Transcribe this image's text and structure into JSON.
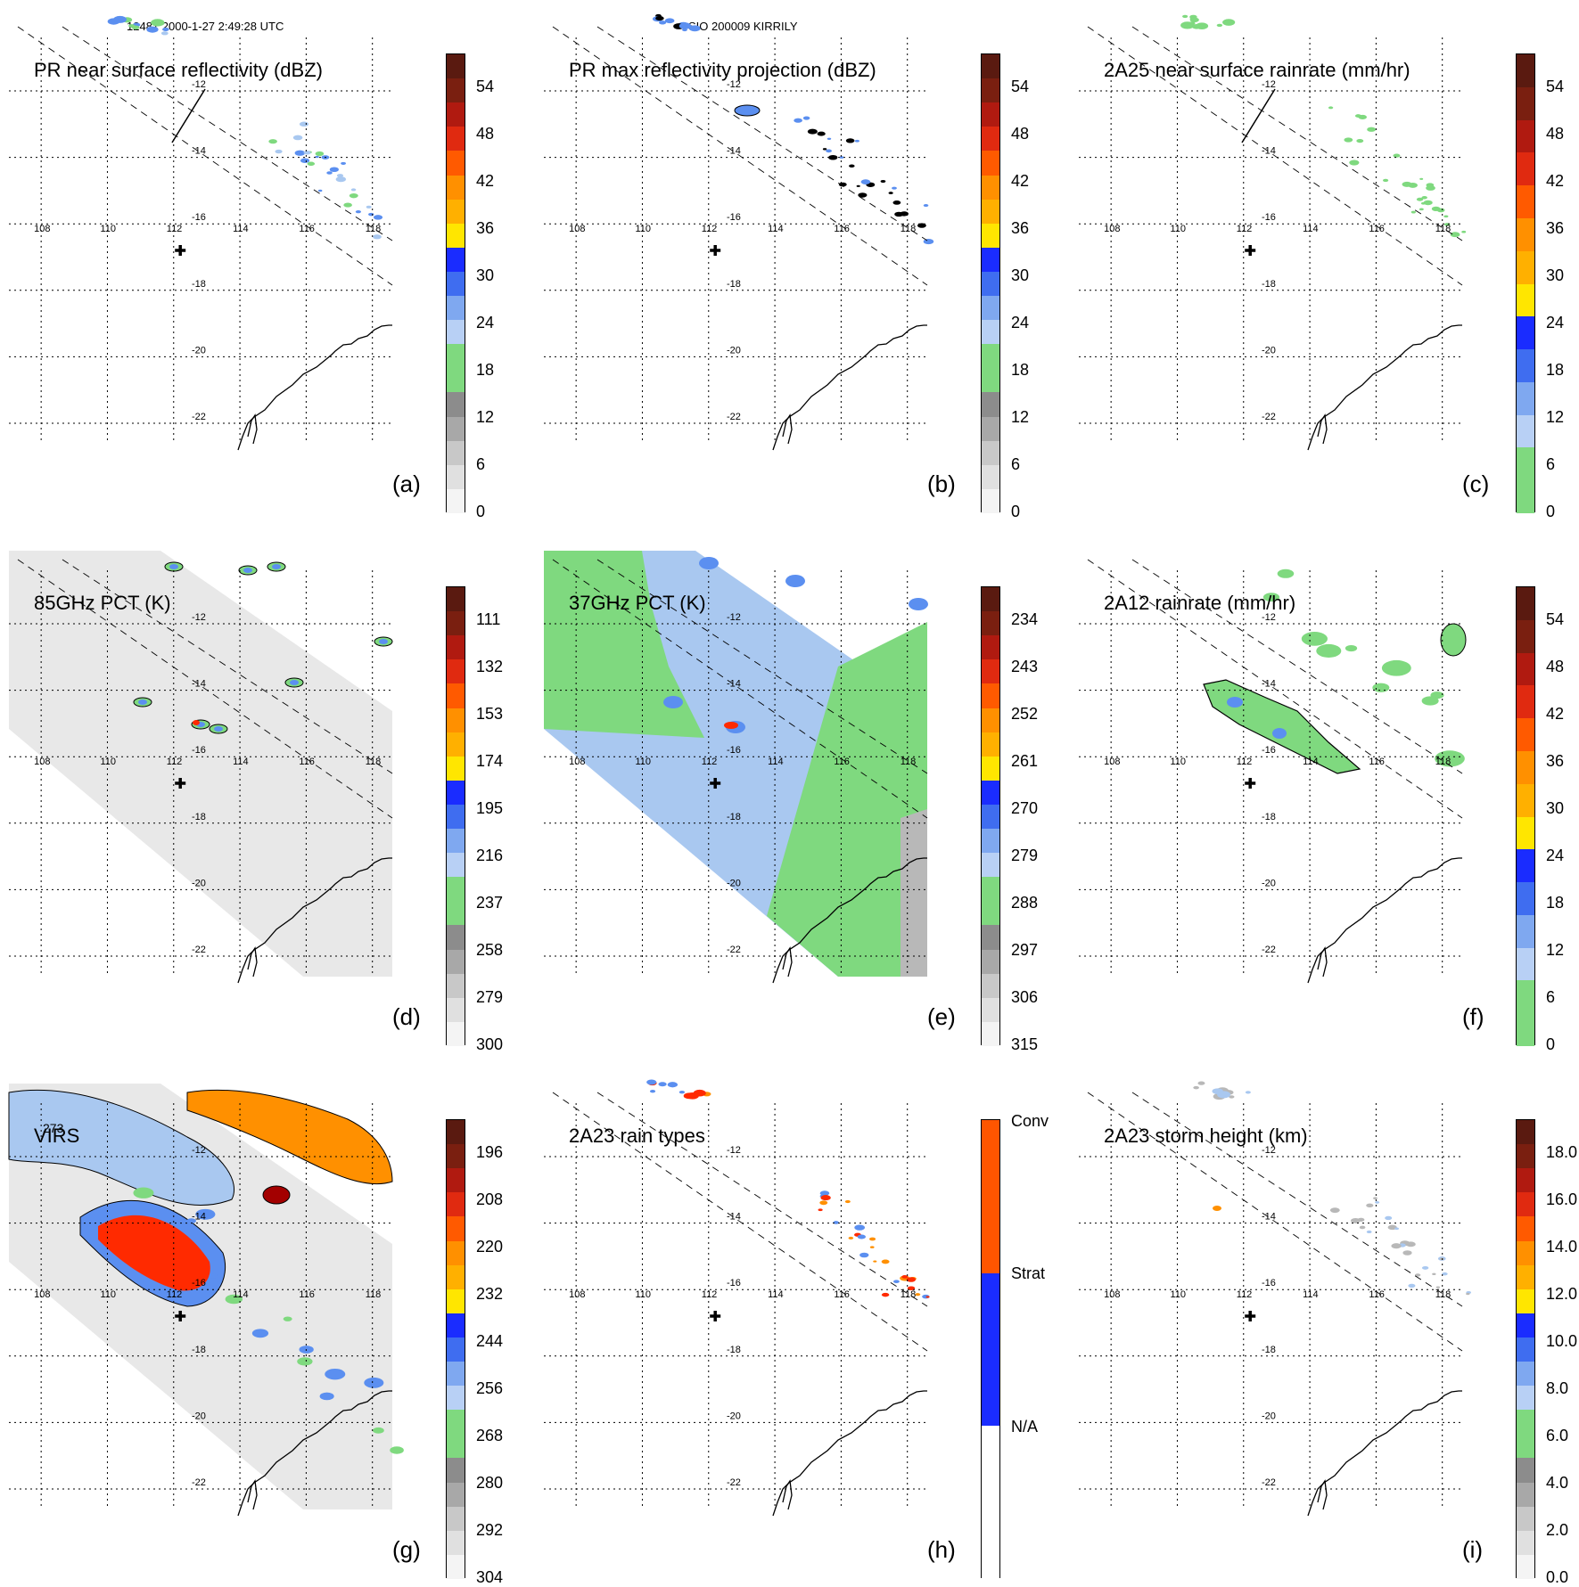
{
  "header": {
    "left": "12481 2000-1-27 2:49:28 UTC",
    "center": "SIO 200009 KIRRILY"
  },
  "map": {
    "lon_labels": [
      "108",
      "110",
      "112",
      "114",
      "116",
      "118"
    ],
    "lat_labels": [
      "-12",
      "-14",
      "-16",
      "-18",
      "-20",
      "-22"
    ],
    "storm_center": {
      "lon": 112.2,
      "lat": -16.8
    },
    "colors": {
      "gray_light": "#e8e8e8",
      "gray_mid": "#b8b8b8",
      "gray_dark": "#8c8c8c",
      "green": "#7fd97f",
      "lightblue": "#a9c8f0",
      "blue": "#5b8ff0",
      "darkblue": "#1a2cff",
      "yellow": "#ffe600",
      "orange": "#ff9000",
      "red": "#ff2a00",
      "darkred": "#a30000"
    }
  },
  "panels": [
    {
      "id": "a",
      "title": "PR near surface reflectivity (dBZ)",
      "label": "(a)",
      "colorbar": {
        "ticks": [
          "54",
          "48",
          "42",
          "36",
          "30",
          "24",
          "18",
          "12",
          "6",
          "0"
        ],
        "colors": [
          "#5a1a10",
          "#7a1f10",
          "#b01a10",
          "#e02a10",
          "#ff5a00",
          "#ff9000",
          "#ffb000",
          "#ffe600",
          "#1a2cff",
          "#3f6df0",
          "#7fa8f0",
          "#b8d0f5",
          "#7fd97f",
          "#7fd97f",
          "#8c8c8c",
          "#a8a8a8",
          "#c8c8c8",
          "#e0e0e0",
          "#f4f4f4"
        ]
      }
    },
    {
      "id": "b",
      "title": "PR max reflectivity projection (dBZ)",
      "label": "(b)",
      "colorbar": {
        "ticks": [
          "54",
          "48",
          "42",
          "36",
          "30",
          "24",
          "18",
          "12",
          "6",
          "0"
        ],
        "colors": [
          "#5a1a10",
          "#7a1f10",
          "#b01a10",
          "#e02a10",
          "#ff5a00",
          "#ff9000",
          "#ffb000",
          "#ffe600",
          "#1a2cff",
          "#3f6df0",
          "#7fa8f0",
          "#b8d0f5",
          "#7fd97f",
          "#7fd97f",
          "#8c8c8c",
          "#a8a8a8",
          "#c8c8c8",
          "#e0e0e0",
          "#f4f4f4"
        ]
      }
    },
    {
      "id": "c",
      "title": "2A25 near surface rainrate (mm/hr)",
      "label": "(c)",
      "colorbar": {
        "ticks": [
          "54",
          "48",
          "42",
          "36",
          "30",
          "24",
          "18",
          "12",
          "6",
          "0"
        ],
        "colors": [
          "#5a1a10",
          "#7a1f10",
          "#b01a10",
          "#e02a10",
          "#ff5a00",
          "#ff9000",
          "#ffb000",
          "#ffe600",
          "#1a2cff",
          "#3f6df0",
          "#7fa8f0",
          "#b8d0f5",
          "#7fd97f",
          "#7fd97f"
        ]
      }
    },
    {
      "id": "d",
      "title": "85GHz PCT (K)",
      "label": "(d)",
      "colorbar": {
        "ticks": [
          "111",
          "132",
          "153",
          "174",
          "195",
          "216",
          "237",
          "258",
          "279",
          "300"
        ],
        "colors": [
          "#5a1a10",
          "#7a1f10",
          "#b01a10",
          "#e02a10",
          "#ff5a00",
          "#ff9000",
          "#ffb000",
          "#ffe600",
          "#1a2cff",
          "#3f6df0",
          "#7fa8f0",
          "#b8d0f5",
          "#7fd97f",
          "#7fd97f",
          "#8c8c8c",
          "#a8a8a8",
          "#c8c8c8",
          "#e0e0e0",
          "#f4f4f4"
        ]
      }
    },
    {
      "id": "e",
      "title": "37GHz PCT (K)",
      "label": "(e)",
      "colorbar": {
        "ticks": [
          "234",
          "243",
          "252",
          "261",
          "270",
          "279",
          "288",
          "297",
          "306",
          "315"
        ],
        "colors": [
          "#5a1a10",
          "#7a1f10",
          "#b01a10",
          "#e02a10",
          "#ff5a00",
          "#ff9000",
          "#ffb000",
          "#ffe600",
          "#1a2cff",
          "#3f6df0",
          "#7fa8f0",
          "#b8d0f5",
          "#7fd97f",
          "#7fd97f",
          "#8c8c8c",
          "#a8a8a8",
          "#c8c8c8",
          "#e0e0e0",
          "#f4f4f4"
        ]
      }
    },
    {
      "id": "f",
      "title": "2A12 rainrate (mm/hr)",
      "label": "(f)",
      "colorbar": {
        "ticks": [
          "54",
          "48",
          "42",
          "36",
          "30",
          "24",
          "18",
          "12",
          "6",
          "0"
        ],
        "colors": [
          "#5a1a10",
          "#7a1f10",
          "#b01a10",
          "#e02a10",
          "#ff5a00",
          "#ff9000",
          "#ffb000",
          "#ffe600",
          "#1a2cff",
          "#3f6df0",
          "#7fa8f0",
          "#b8d0f5",
          "#7fd97f",
          "#7fd97f"
        ]
      }
    },
    {
      "id": "g",
      "title": "VIRS",
      "label": "(g)",
      "contour_label": "273",
      "colorbar": {
        "ticks": [
          "196",
          "208",
          "220",
          "232",
          "244",
          "256",
          "268",
          "280",
          "292",
          "304"
        ],
        "colors": [
          "#5a1a10",
          "#7a1f10",
          "#b01a10",
          "#e02a10",
          "#ff5a00",
          "#ff9000",
          "#ffb000",
          "#ffe600",
          "#1a2cff",
          "#3f6df0",
          "#7fa8f0",
          "#b8d0f5",
          "#7fd97f",
          "#7fd97f",
          "#8c8c8c",
          "#a8a8a8",
          "#c8c8c8",
          "#e0e0e0",
          "#f4f4f4"
        ]
      }
    },
    {
      "id": "h",
      "title": "2A23 rain types",
      "label": "(h)",
      "colorbar": {
        "ticks": [
          "Conv",
          "Strat",
          "N/A"
        ],
        "colors": [
          "#ff5500",
          "#1a2cff",
          "#ffffff"
        ]
      }
    },
    {
      "id": "i",
      "title": "2A23 storm height (km)",
      "label": "(i)",
      "colorbar": {
        "ticks": [
          "18.0",
          "16.0",
          "14.0",
          "12.0",
          "10.0",
          "8.0",
          "6.0",
          "4.0",
          "2.0",
          "0.0"
        ],
        "colors": [
          "#5a1a10",
          "#7a1f10",
          "#b01a10",
          "#e02a10",
          "#ff5a00",
          "#ff9000",
          "#ffb000",
          "#ffe600",
          "#1a2cff",
          "#3f6df0",
          "#7fa8f0",
          "#b8d0f5",
          "#7fd97f",
          "#7fd97f",
          "#8c8c8c",
          "#a8a8a8",
          "#c8c8c8",
          "#e0e0e0",
          "#f4f4f4"
        ]
      }
    }
  ]
}
